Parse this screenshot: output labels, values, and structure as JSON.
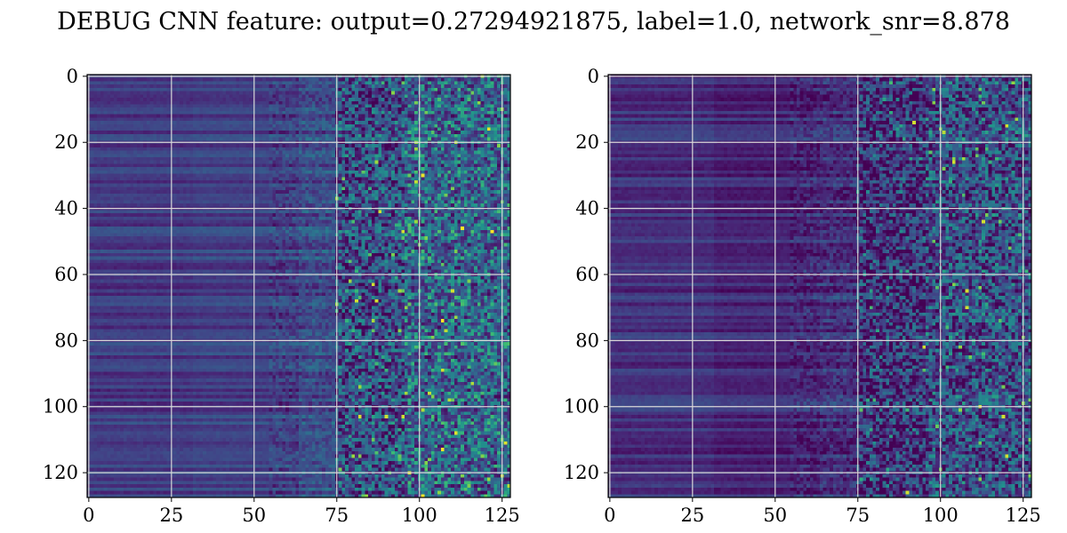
{
  "title": "DEBUG CNN feature: output=0.27294921875, label=1.0, network_snr=8.878",
  "chart_data": [
    {
      "type": "heatmap",
      "colormap": "viridis",
      "grid": true,
      "rows": 128,
      "cols": 128,
      "xlim": [
        -0.5,
        127.5
      ],
      "ylim": [
        127.5,
        -0.5
      ],
      "xticks": [
        0,
        25,
        50,
        75,
        100,
        125
      ],
      "yticks": [
        0,
        20,
        40,
        60,
        80,
        100,
        120
      ],
      "bright_spots": [
        [
          63,
          86
        ],
        [
          68,
          81
        ],
        [
          68,
          87
        ],
        [
          65,
          110
        ],
        [
          47,
          95
        ],
        [
          103,
          82
        ],
        [
          103,
          90
        ],
        [
          103,
          95
        ],
        [
          41,
          88
        ]
      ],
      "mean_level": [
        0.22,
        0.24,
        0.3,
        0.4
      ]
    },
    {
      "type": "heatmap",
      "colormap": "viridis",
      "grid": true,
      "rows": 128,
      "cols": 128,
      "xlim": [
        -0.5,
        127.5
      ],
      "ylim": [
        127.5,
        -0.5
      ],
      "xticks": [
        0,
        25,
        50,
        75,
        100,
        125
      ],
      "yticks": [
        0,
        20,
        40,
        60,
        80,
        100,
        120
      ],
      "bright_spots": [
        [
          15,
          120
        ],
        [
          14,
          92
        ],
        [
          26,
          104
        ],
        [
          44,
          113
        ],
        [
          70,
          108
        ],
        [
          82,
          95
        ],
        [
          100,
          112
        ],
        [
          103,
          119
        ],
        [
          115,
          120
        ],
        [
          126,
          90
        ],
        [
          65,
          108
        ]
      ],
      "mean_level": [
        0.18,
        0.14,
        0.18,
        0.3
      ]
    }
  ]
}
